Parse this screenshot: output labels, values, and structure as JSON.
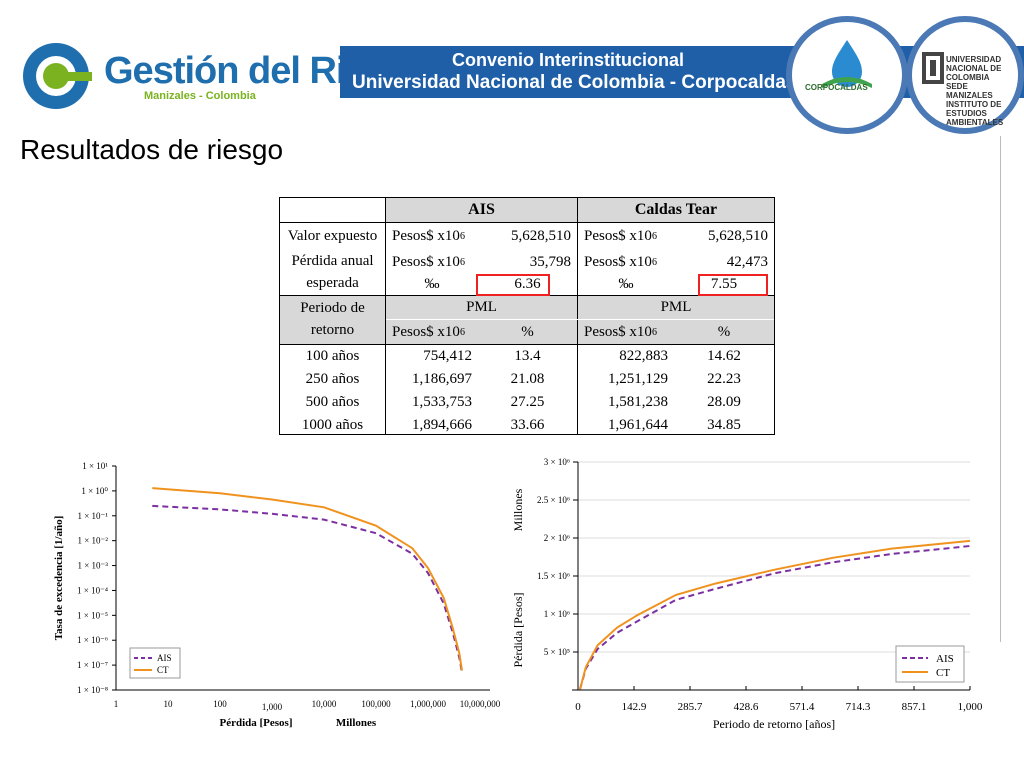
{
  "header": {
    "logo_title": "Gestión del Riesgo",
    "logo_subtitle": "Manizales - Colombia",
    "banner_line1": "Convenio Interinstitucional",
    "banner_line2": "Universidad Nacional de Colombia - Corpocaldas",
    "corpocaldas_label": "CORPOCALDAS",
    "unal_label": "UNIVERSIDAD NACIONAL DE COLOMBIA SEDE MANIZALES INSTITUTO DE ESTUDIOS AMBIENTALES"
  },
  "page_title": "Resultados de riesgo",
  "table": {
    "col_ais": "AIS",
    "col_ct": "Caldas Tear",
    "row_valor": "Valor expuesto",
    "row_perdida_l1": "Pérdida anual",
    "row_perdida_l2": "esperada",
    "row_periodo_l1": "Periodo de",
    "row_periodo_l2": "retorno",
    "unit_pesos": "Pesos$ x10",
    "unit_exp": "6",
    "permil": "‰",
    "pct": "%",
    "pml": "PML",
    "ais_valor": "5,628,510",
    "ct_valor": "5,628,510",
    "ais_perdida": "35,798",
    "ct_perdida": "42,473",
    "ais_permil": "6.36",
    "ct_permil": "7.55",
    "rows": [
      {
        "periodo": "100 años",
        "ais_pml": "754,412",
        "ais_pct": "13.4",
        "ct_pml": "822,883",
        "ct_pct": "14.62"
      },
      {
        "periodo": "250 años",
        "ais_pml": "1,186,697",
        "ais_pct": "21.08",
        "ct_pml": "1,251,129",
        "ct_pct": "22.23"
      },
      {
        "periodo": "500 años",
        "ais_pml": "1,533,753",
        "ais_pct": "27.25",
        "ct_pml": "1,581,238",
        "ct_pct": "28.09"
      },
      {
        "periodo": "1000 años",
        "ais_pml": "1,894,666",
        "ais_pct": "33.66",
        "ct_pml": "1,961,644",
        "ct_pct": "34.85"
      }
    ]
  },
  "chart_data": [
    {
      "type": "line",
      "xlabel": "Pérdida [Pesos]",
      "xlabel2": "Millones",
      "ylabel": "Tasa de excedencia [1/año]",
      "x_ticks": [
        "1",
        "10",
        "100",
        "1,000",
        "10,000",
        "100,000",
        "1,000,000",
        "10,000,000"
      ],
      "y_ticks": [
        "1 × 10¹",
        "1 × 10⁰",
        "1 × 10⁻¹",
        "1 × 10⁻²",
        "1 × 10⁻³",
        "1 × 10⁻⁴",
        "1 × 10⁻⁵",
        "1 × 10⁻⁶",
        "1 × 10⁻⁷",
        "1 × 10⁻⁸"
      ],
      "scale": "log-log",
      "legend_position": "bottom-left",
      "series": [
        {
          "name": "AIS",
          "color": "#7b2fa0",
          "style": "dashed",
          "x": [
            5,
            100,
            1000,
            10000,
            100000,
            500000,
            1000000,
            2000000,
            3000000,
            4000000,
            4500000
          ],
          "y": [
            0.25,
            0.18,
            0.12,
            0.07,
            0.02,
            0.003,
            0.0005,
            3e-05,
            2e-06,
            2e-07,
            5e-08
          ]
        },
        {
          "name": "CT",
          "color": "#f0921e",
          "style": "solid",
          "x": [
            5,
            100,
            1000,
            10000,
            100000,
            500000,
            1000000,
            2000000,
            3000000,
            4000000,
            4500000
          ],
          "y": [
            1.3,
            0.8,
            0.45,
            0.22,
            0.04,
            0.005,
            0.0008,
            5e-05,
            3e-06,
            3e-07,
            6e-08
          ]
        }
      ]
    },
    {
      "type": "line",
      "xlabel": "Periodo de retorno [años]",
      "ylabel": "Pérdida [Pesos]",
      "ylabel2": "Millones",
      "x_ticks": [
        "0",
        "142.9",
        "285.7",
        "428.6",
        "571.4",
        "714.3",
        "857.1",
        "1,000"
      ],
      "y_ticks": [
        "5 × 10⁵",
        "1 × 10⁶",
        "1.5 × 10⁶",
        "2 × 10⁶",
        "2.5 × 10⁶",
        "3 × 10⁶"
      ],
      "xlim": [
        0,
        1000
      ],
      "ylim": [
        0,
        3000000
      ],
      "legend_position": "bottom-right",
      "series": [
        {
          "name": "AIS",
          "color": "#7b2fa0",
          "style": "dashed",
          "x": [
            5,
            20,
            50,
            100,
            150,
            250,
            350,
            500,
            650,
            800,
            1000
          ],
          "y": [
            10000,
            280000,
            540000,
            754412,
            900000,
            1186697,
            1330000,
            1533753,
            1680000,
            1790000,
            1894666
          ]
        },
        {
          "name": "CT",
          "color": "#f0921e",
          "style": "solid",
          "x": [
            5,
            20,
            50,
            100,
            150,
            250,
            350,
            500,
            650,
            800,
            1000
          ],
          "y": [
            10000,
            300000,
            590000,
            822883,
            980000,
            1251129,
            1400000,
            1581238,
            1740000,
            1860000,
            1961644
          ]
        }
      ]
    }
  ]
}
